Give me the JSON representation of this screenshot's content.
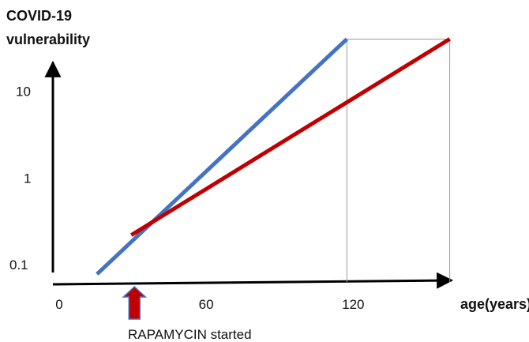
{
  "chart_data": {
    "type": "line",
    "ylabel_lines": [
      "COVID-19",
      "vulnerability"
    ],
    "xlabel": "age(years)",
    "x_ticks": [
      "0",
      "60",
      "120"
    ],
    "x_tick_values": [
      0,
      60,
      120
    ],
    "y_ticks": [
      "0.1",
      "1",
      "10"
    ],
    "y_tick_values": [
      0.1,
      1,
      10
    ],
    "y_scale": "log",
    "xlim": [
      0,
      166
    ],
    "ylim": [
      0.062,
      43
    ],
    "grid": false,
    "series": [
      {
        "x": [
          18,
          120
        ],
        "y": [
          0.078,
          40
        ],
        "color": "#4472C4"
      },
      {
        "x": [
          32,
          162
        ],
        "y": [
          0.22,
          40
        ],
        "color": "#C00000"
      }
    ],
    "reference_lines": [
      {
        "x": 120,
        "color": "#9A9A9A"
      },
      {
        "x": 162,
        "color": "#9A9A9A"
      }
    ],
    "top_reference_segment": {
      "x": [
        120,
        162
      ],
      "y": 40,
      "color": "#9A9A9A"
    },
    "annotation": {
      "text": "RAPAMYCIN started",
      "x": 32,
      "arrow_color": "#C00000",
      "arrow_border": "#4472C4"
    }
  }
}
